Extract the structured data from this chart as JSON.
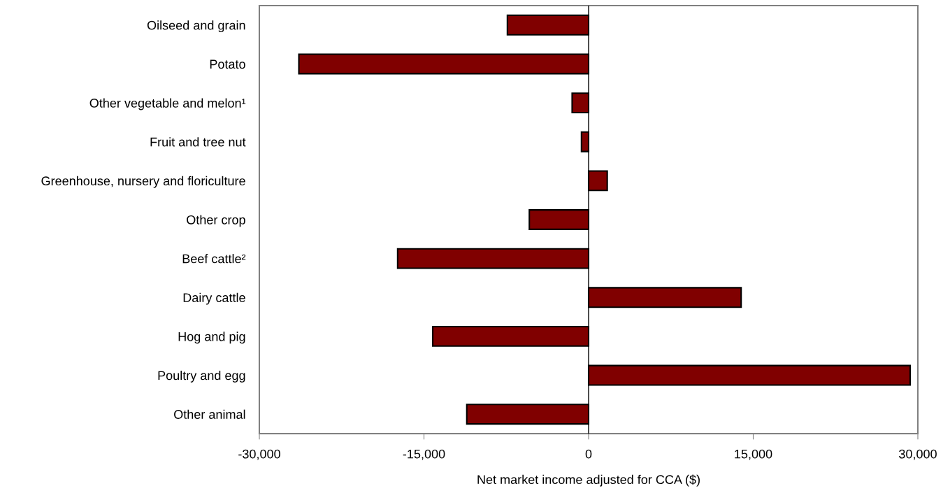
{
  "chart_data": {
    "type": "bar",
    "orientation": "horizontal",
    "xlabel": "Net market income adjusted for CCA ($)",
    "categories": [
      "Oilseed and grain",
      "Potato",
      "Other vegetable and melon¹",
      "Fruit and tree nut",
      "Greenhouse, nursery and floriculture",
      "Other crop",
      "Beef cattle²",
      "Dairy cattle",
      "Hog and pig",
      "Poultry and egg",
      "Other animal"
    ],
    "values": [
      -7400,
      -26400,
      -1500,
      -650,
      1700,
      -5400,
      -17400,
      13900,
      -14200,
      29300,
      -11100
    ],
    "color": "#800000",
    "xlim": [
      -30000,
      30000
    ],
    "xticks": [
      {
        "value": -30000,
        "label": "-30,000"
      },
      {
        "value": -15000,
        "label": "-15,000"
      },
      {
        "value": 0,
        "label": "0"
      },
      {
        "value": 15000,
        "label": "15,000"
      },
      {
        "value": 30000,
        "label": "30,000"
      }
    ],
    "ref_lines": [
      {
        "axis": "x",
        "value": 0,
        "color": "#000000"
      }
    ],
    "grid": false,
    "legend": false
  }
}
